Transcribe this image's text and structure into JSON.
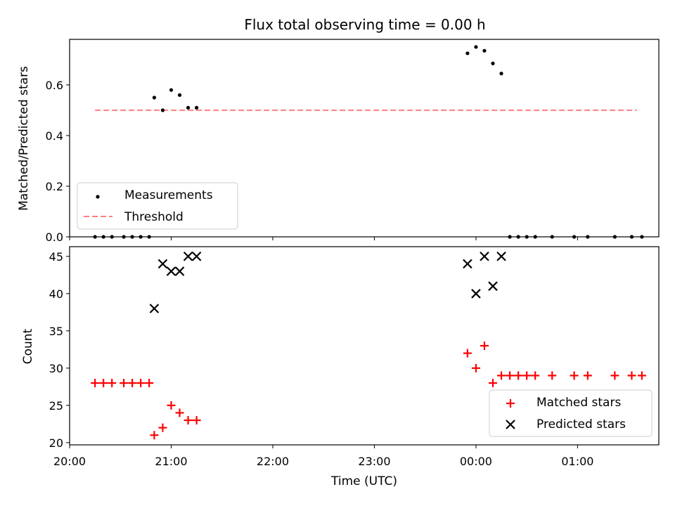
{
  "chart_data": [
    {
      "type": "scatter",
      "title": "Flux total observing time = 0.00 h",
      "xlabel": "",
      "ylabel": "Matched/Predicted stars",
      "xlim": [
        "20:00",
        "01:48"
      ],
      "ylim": [
        0,
        0.78
      ],
      "yticks": [
        "0.0",
        "0.2",
        "0.4",
        "0.6"
      ],
      "legend_position": "lower-left",
      "series": [
        {
          "name": "Measurements",
          "kind": "scatter",
          "color": "#000000",
          "x": [
            "20:15",
            "20:20",
            "20:25",
            "20:32",
            "20:37",
            "20:42",
            "20:47",
            "20:50",
            "20:55",
            "21:00",
            "21:05",
            "21:10",
            "21:15",
            "23:55",
            "00:00",
            "00:05",
            "00:10",
            "00:15",
            "00:20",
            "00:25",
            "00:30",
            "00:35",
            "00:45",
            "00:58",
            "01:06",
            "01:22",
            "01:32",
            "01:38"
          ],
          "y": [
            0.0,
            0.0,
            0.0,
            0.0,
            0.0,
            0.0,
            0.0,
            0.55,
            0.5,
            0.58,
            0.56,
            0.51,
            0.51,
            0.725,
            0.75,
            0.735,
            0.685,
            0.645,
            0.0,
            0.0,
            0.0,
            0.0,
            0.0,
            0.0,
            0.0,
            0.0,
            0.0,
            0.0
          ]
        },
        {
          "name": "Threshold",
          "kind": "dashed-line",
          "color": "#ff7f7f",
          "x": [
            "20:15",
            "01:35"
          ],
          "y": [
            0.5,
            0.5
          ]
        }
      ]
    },
    {
      "type": "scatter",
      "title": "",
      "xlabel": "Time (UTC)",
      "ylabel": "Count",
      "xlim": [
        "20:00",
        "01:48"
      ],
      "ylim": [
        19.7,
        46.3
      ],
      "xticks": [
        "20:00",
        "21:00",
        "22:00",
        "23:00",
        "00:00",
        "01:00"
      ],
      "yticks": [
        "20",
        "25",
        "30",
        "35",
        "40",
        "45"
      ],
      "legend_position": "lower-right",
      "series": [
        {
          "name": "Matched stars",
          "marker": "plus",
          "color": "#ff0000",
          "x": [
            "20:15",
            "20:20",
            "20:25",
            "20:32",
            "20:37",
            "20:42",
            "20:47",
            "20:50",
            "20:55",
            "21:00",
            "21:05",
            "21:10",
            "21:15",
            "23:55",
            "00:00",
            "00:05",
            "00:10",
            "00:15",
            "00:20",
            "00:25",
            "00:30",
            "00:35",
            "00:45",
            "00:58",
            "01:06",
            "01:22",
            "01:32",
            "01:38"
          ],
          "y": [
            28,
            28,
            28,
            28,
            28,
            28,
            28,
            21,
            22,
            25,
            24,
            23,
            23,
            32,
            30,
            33,
            28,
            29,
            29,
            29,
            29,
            29,
            29,
            29,
            29,
            29,
            29,
            29
          ]
        },
        {
          "name": "Predicted stars",
          "marker": "x",
          "color": "#000000",
          "x": [
            "20:50",
            "20:55",
            "21:00",
            "21:05",
            "21:10",
            "21:15",
            "23:55",
            "00:00",
            "00:05",
            "00:10",
            "00:15"
          ],
          "y": [
            38,
            44,
            43,
            43,
            45,
            45,
            44,
            40,
            45,
            41,
            45
          ]
        }
      ]
    }
  ]
}
